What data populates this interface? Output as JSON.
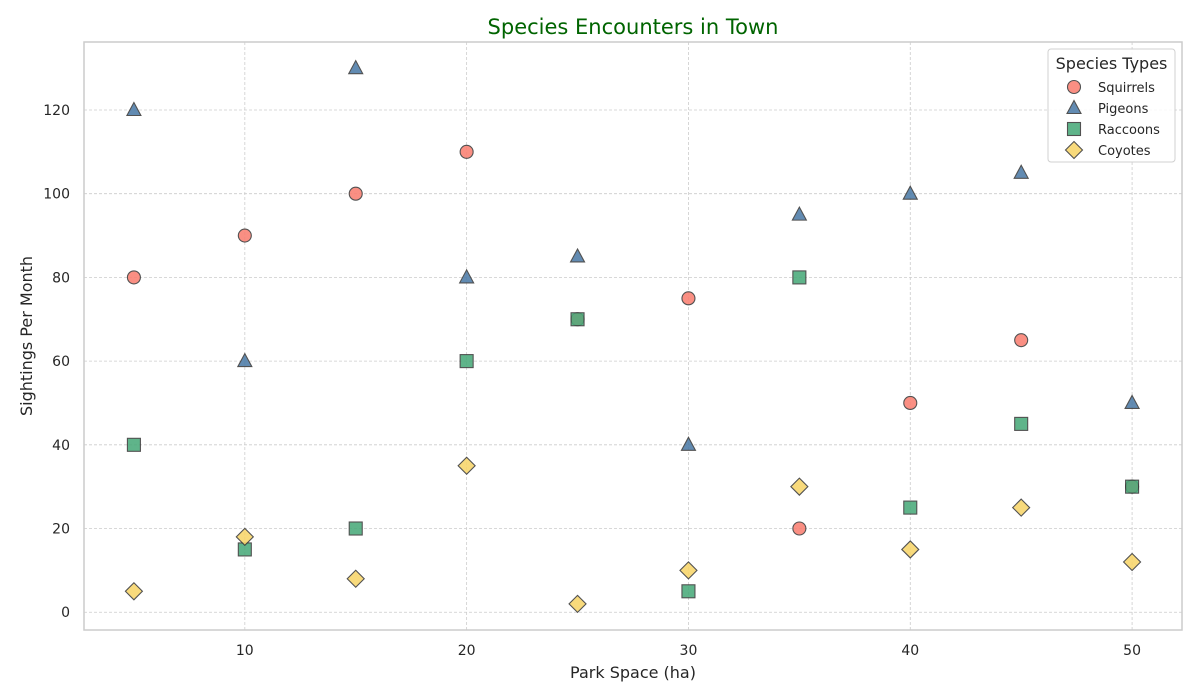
{
  "chart_data": {
    "type": "scatter",
    "title": "Species Encounters in Town",
    "title_color": "#006400",
    "xlabel": "Park Space (ha)",
    "ylabel": "Sightings Per Month",
    "xlim": [
      2.75,
      52.25
    ],
    "ylim": [
      -4.25,
      136.25
    ],
    "xticks": [
      10,
      20,
      30,
      40,
      50
    ],
    "yticks": [
      0,
      20,
      40,
      60,
      80,
      100,
      120
    ],
    "grid": true,
    "legend": {
      "title": "Species Types",
      "placement": "top-right"
    },
    "x": [
      5,
      10,
      15,
      20,
      25,
      30,
      35,
      40,
      45,
      50
    ],
    "series": [
      {
        "name": "Squirrels",
        "marker": "circle",
        "color": "#fa8072",
        "values": [
          80,
          90,
          100,
          110,
          70,
          75,
          20,
          50,
          65,
          30
        ]
      },
      {
        "name": "Pigeons",
        "marker": "triangle",
        "color": "#4d7ca8",
        "values": [
          120,
          60,
          130,
          80,
          85,
          40,
          95,
          100,
          105,
          50
        ]
      },
      {
        "name": "Raccoons",
        "marker": "square",
        "color": "#4aaa7a",
        "values": [
          40,
          15,
          20,
          60,
          70,
          5,
          80,
          25,
          45,
          30
        ]
      },
      {
        "name": "Coyotes",
        "marker": "diamond",
        "color": "#f8d56a",
        "values": [
          5,
          18,
          8,
          35,
          2,
          10,
          30,
          15,
          25,
          12
        ]
      }
    ]
  }
}
